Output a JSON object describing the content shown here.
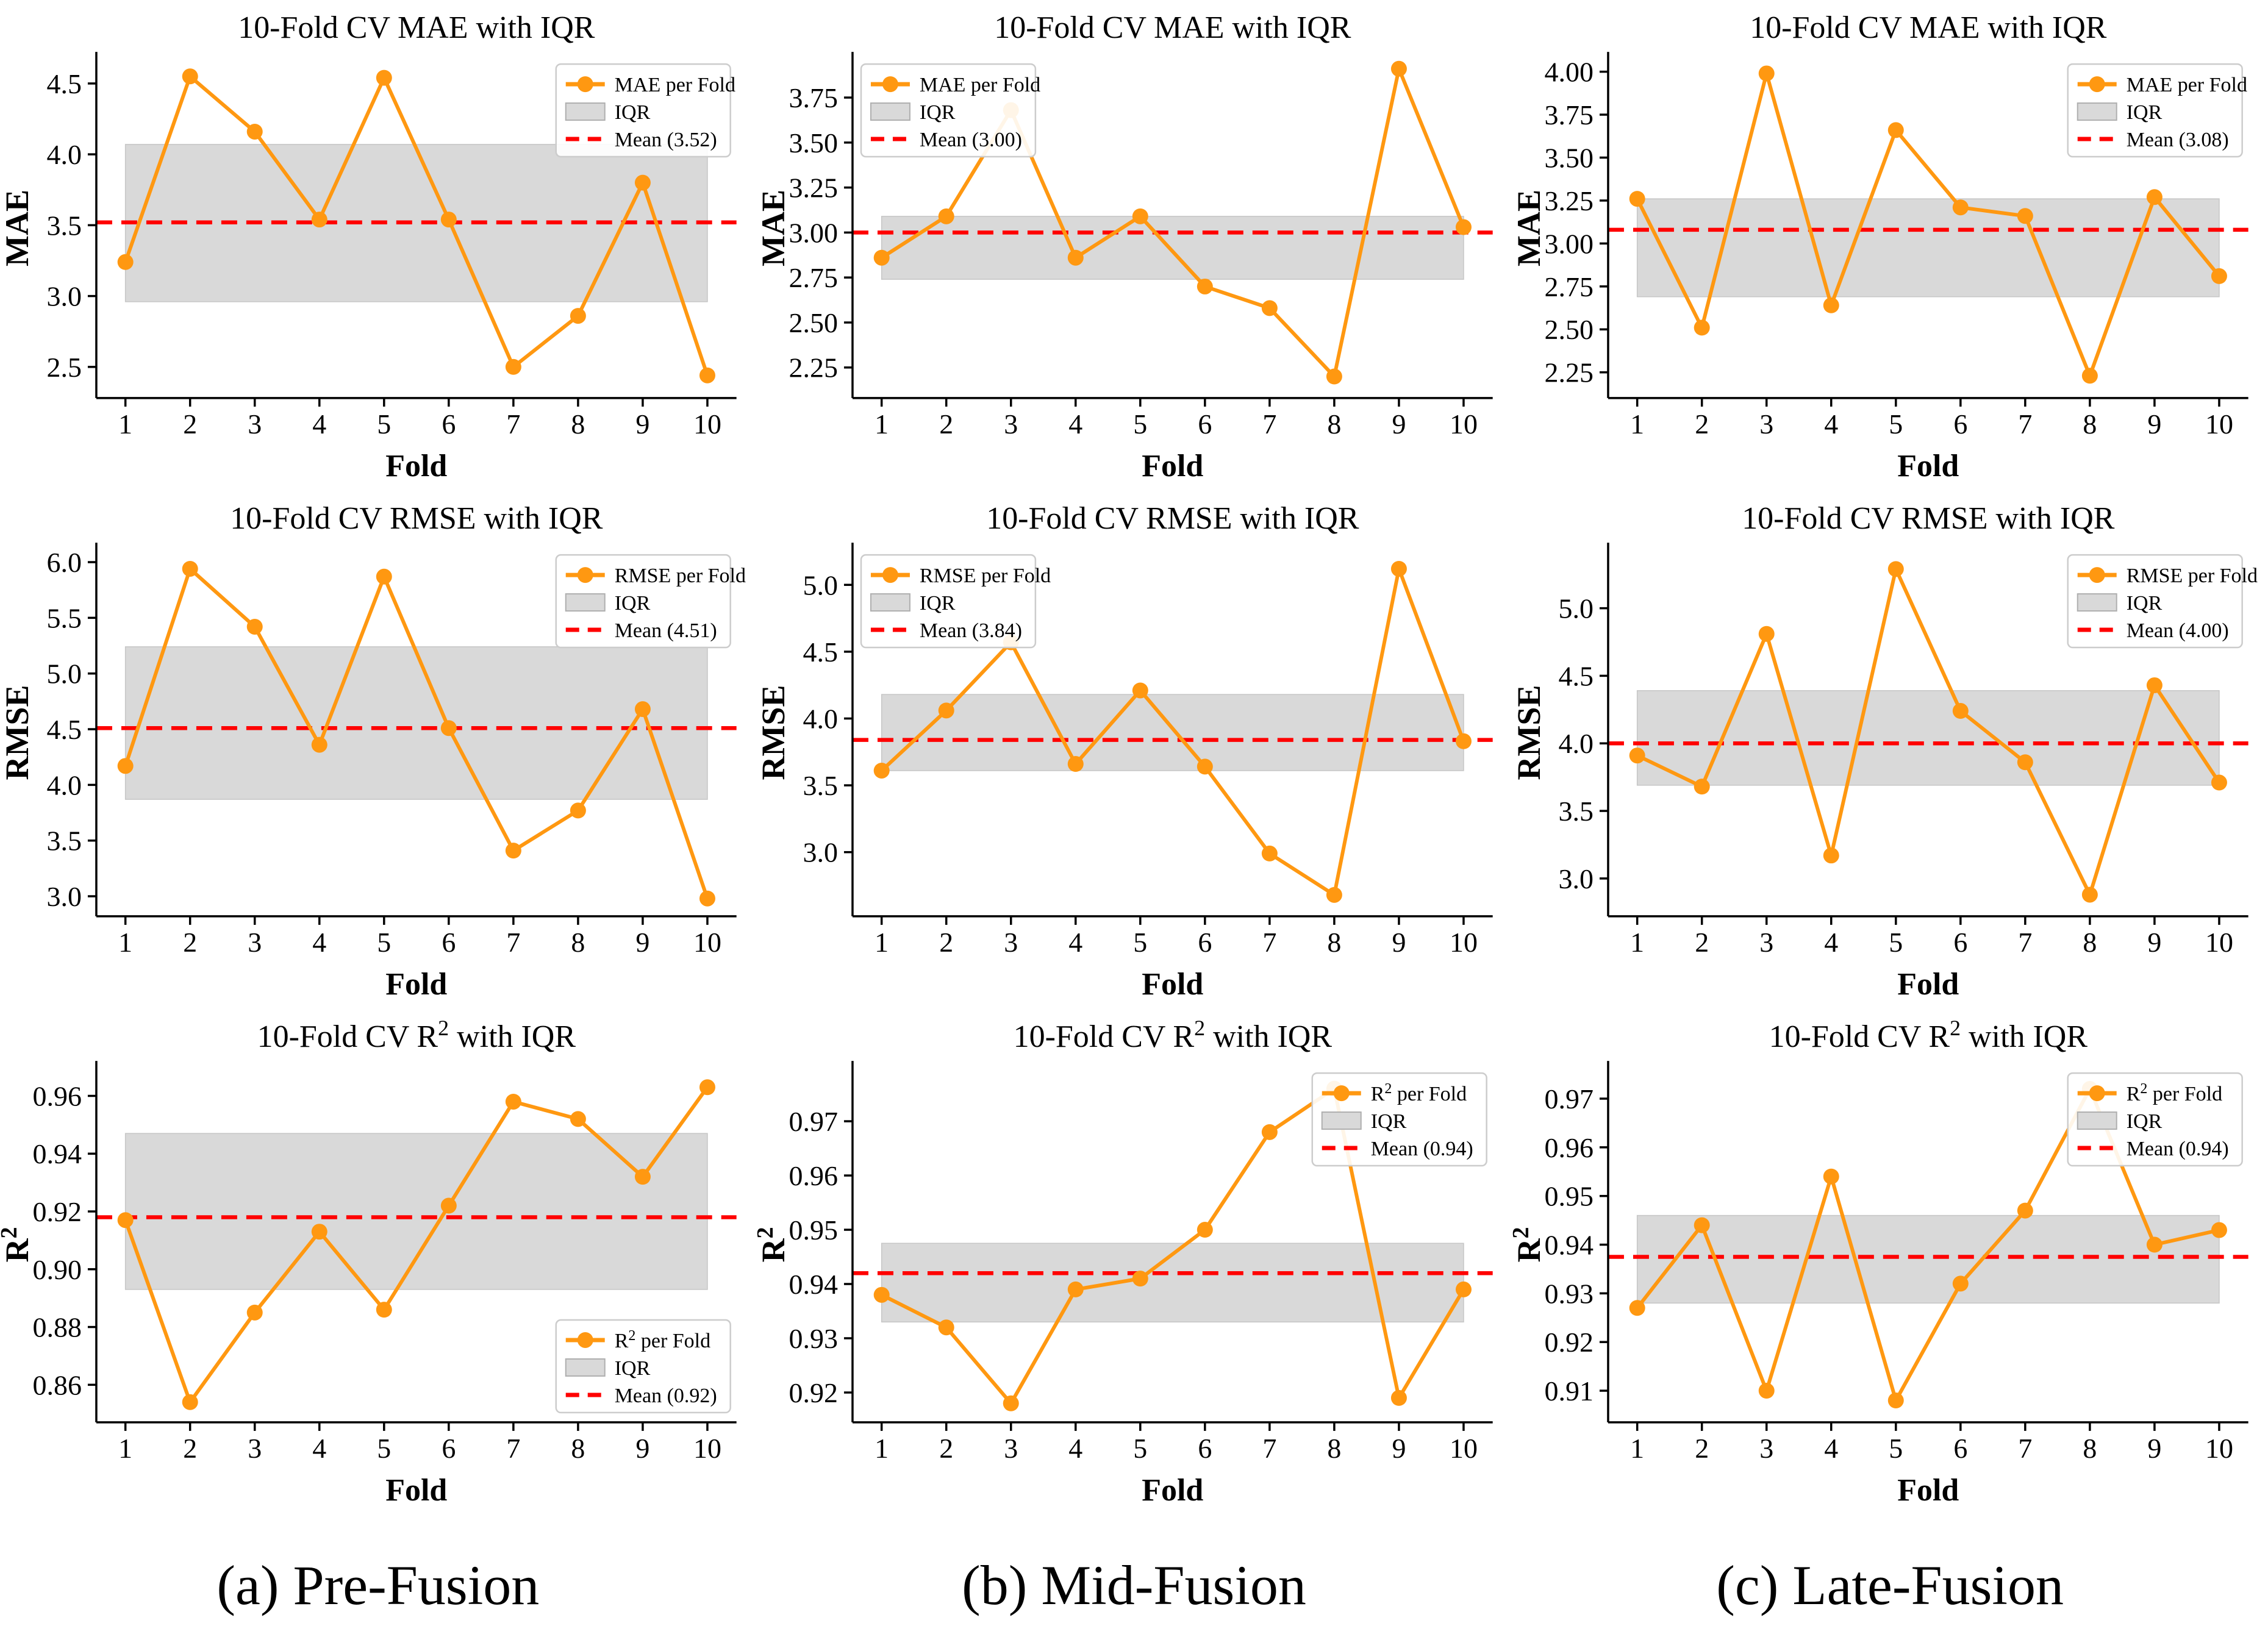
{
  "figure_title": "10-Fold Cross-Validation metrics (MAE, RMSE, R2) with IQR for three fusion strategies",
  "colors": {
    "series_line": "#FF9811",
    "marker": "#FF9811",
    "mean_line": "#FF0000",
    "iqr_fill": "#D9D9D9",
    "iqr_edge": "#C6C6C6",
    "axis": "#000000",
    "legend_border": "#CCCCCC",
    "background": "#FFFFFF"
  },
  "captions": [
    {
      "label": "(a) Pre-Fusion"
    },
    {
      "label": "(b) Mid-Fusion"
    },
    {
      "label": "(c) Late-Fusion"
    }
  ],
  "chart_data": [
    {
      "id": "pre-fusion-mae",
      "type": "line",
      "title": "10-Fold CV MAE with IQR",
      "xlabel": "Fold",
      "ylabel": "MAE",
      "series_label": "MAE per Fold",
      "iqr_label": "IQR",
      "mean_label": "Mean (3.52)",
      "x": [
        1,
        2,
        3,
        4,
        5,
        6,
        7,
        8,
        9,
        10
      ],
      "values": [
        3.24,
        4.55,
        4.16,
        3.54,
        4.54,
        3.54,
        2.5,
        2.86,
        3.8,
        2.44
      ],
      "iqr": [
        2.96,
        4.07
      ],
      "mean": 3.52,
      "yticks": [
        2.5,
        3.0,
        3.5,
        4.0,
        4.5
      ],
      "ytick_labels": [
        "2.5",
        "3.0",
        "3.5",
        "4.0",
        "4.5"
      ],
      "ylim": [
        2.28,
        4.68
      ],
      "xlim": [
        0.55,
        10.45
      ],
      "legend_pos": "top-right",
      "grid": false
    },
    {
      "id": "mid-fusion-mae",
      "type": "line",
      "title": "10-Fold CV MAE with IQR",
      "xlabel": "Fold",
      "ylabel": "MAE",
      "series_label": "MAE per Fold",
      "iqr_label": "IQR",
      "mean_label": "Mean (3.00)",
      "x": [
        1,
        2,
        3,
        4,
        5,
        6,
        7,
        8,
        9,
        10
      ],
      "values": [
        2.86,
        3.09,
        3.68,
        2.86,
        3.09,
        2.7,
        2.58,
        2.2,
        3.91,
        3.03
      ],
      "iqr": [
        2.74,
        3.09
      ],
      "mean": 3.0,
      "yticks": [
        2.25,
        2.5,
        2.75,
        3.0,
        3.25,
        3.5,
        3.75
      ],
      "ytick_labels": [
        "2.25",
        "2.50",
        "2.75",
        "3.00",
        "3.25",
        "3.50",
        "3.75"
      ],
      "ylim": [
        2.08,
        3.97
      ],
      "xlim": [
        0.55,
        10.45
      ],
      "legend_pos": "top-left",
      "grid": false
    },
    {
      "id": "late-fusion-mae",
      "type": "line",
      "title": "10-Fold CV MAE with IQR",
      "xlabel": "Fold",
      "ylabel": "MAE",
      "series_label": "MAE per Fold",
      "iqr_label": "IQR",
      "mean_label": "Mean (3.08)",
      "x": [
        1,
        2,
        3,
        4,
        5,
        6,
        7,
        8,
        9,
        10
      ],
      "values": [
        3.26,
        2.51,
        3.99,
        2.64,
        3.66,
        3.21,
        3.16,
        2.23,
        3.27,
        2.81
      ],
      "iqr": [
        2.69,
        3.26
      ],
      "mean": 3.08,
      "yticks": [
        2.25,
        2.5,
        2.75,
        3.0,
        3.25,
        3.5,
        3.75,
        4.0
      ],
      "ytick_labels": [
        "2.25",
        "2.50",
        "2.75",
        "3.00",
        "3.25",
        "3.50",
        "3.75",
        "4.00"
      ],
      "ylim": [
        2.1,
        4.08
      ],
      "xlim": [
        0.55,
        10.45
      ],
      "legend_pos": "top-right",
      "grid": false
    },
    {
      "id": "pre-fusion-rmse",
      "type": "line",
      "title": "10-Fold CV RMSE with IQR",
      "xlabel": "Fold",
      "ylabel": "RMSE",
      "series_label": "RMSE per Fold",
      "iqr_label": "IQR",
      "mean_label": "Mean (4.51)",
      "x": [
        1,
        2,
        3,
        4,
        5,
        6,
        7,
        8,
        9,
        10
      ],
      "values": [
        4.17,
        5.94,
        5.42,
        4.36,
        5.87,
        4.51,
        3.41,
        3.77,
        4.68,
        2.98
      ],
      "iqr": [
        3.87,
        5.24
      ],
      "mean": 4.51,
      "yticks": [
        3.0,
        3.5,
        4.0,
        4.5,
        5.0,
        5.5,
        6.0
      ],
      "ytick_labels": [
        "3.0",
        "3.5",
        "4.0",
        "4.5",
        "5.0",
        "5.5",
        "6.0"
      ],
      "ylim": [
        2.82,
        6.12
      ],
      "xlim": [
        0.55,
        10.45
      ],
      "legend_pos": "top-right",
      "grid": false
    },
    {
      "id": "mid-fusion-rmse",
      "type": "line",
      "title": "10-Fold CV RMSE with IQR",
      "xlabel": "Fold",
      "ylabel": "RMSE",
      "series_label": "RMSE per Fold",
      "iqr_label": "IQR",
      "mean_label": "Mean (3.84)",
      "x": [
        1,
        2,
        3,
        4,
        5,
        6,
        7,
        8,
        9,
        10
      ],
      "values": [
        3.61,
        4.06,
        4.57,
        3.66,
        4.21,
        3.64,
        2.99,
        2.68,
        5.12,
        3.83
      ],
      "iqr": [
        3.61,
        4.18
      ],
      "mean": 3.84,
      "yticks": [
        3.0,
        3.5,
        4.0,
        4.5,
        5.0
      ],
      "ytick_labels": [
        "3.0",
        "3.5",
        "4.0",
        "4.5",
        "5.0"
      ],
      "ylim": [
        2.52,
        5.27
      ],
      "xlim": [
        0.55,
        10.45
      ],
      "legend_pos": "top-left",
      "grid": false
    },
    {
      "id": "late-fusion-rmse",
      "type": "line",
      "title": "10-Fold CV RMSE with IQR",
      "xlabel": "Fold",
      "ylabel": "RMSE",
      "series_label": "RMSE per Fold",
      "iqr_label": "IQR",
      "mean_label": "Mean (4.00)",
      "x": [
        1,
        2,
        3,
        4,
        5,
        6,
        7,
        8,
        9,
        10
      ],
      "values": [
        3.91,
        3.68,
        4.81,
        3.17,
        5.29,
        4.24,
        3.86,
        2.88,
        4.43,
        3.71
      ],
      "iqr": [
        3.69,
        4.39
      ],
      "mean": 4.0,
      "yticks": [
        3.0,
        3.5,
        4.0,
        4.5,
        5.0
      ],
      "ytick_labels": [
        "3.0",
        "3.5",
        "4.0",
        "4.5",
        "5.0"
      ],
      "ylim": [
        2.72,
        5.44
      ],
      "xlim": [
        0.55,
        10.45
      ],
      "legend_pos": "top-right",
      "grid": false
    },
    {
      "id": "pre-fusion-r2",
      "type": "line",
      "title": "10-Fold CV R^2 with IQR",
      "xlabel": "Fold",
      "ylabel": "R^2",
      "series_label": "R^2 per Fold",
      "iqr_label": "IQR",
      "mean_label": "Mean (0.92)",
      "x": [
        1,
        2,
        3,
        4,
        5,
        6,
        7,
        8,
        9,
        10
      ],
      "values": [
        0.917,
        0.854,
        0.885,
        0.913,
        0.886,
        0.922,
        0.958,
        0.952,
        0.932,
        0.963
      ],
      "iqr": [
        0.893,
        0.947
      ],
      "mean": 0.918,
      "yticks": [
        0.86,
        0.88,
        0.9,
        0.92,
        0.94,
        0.96
      ],
      "ytick_labels": [
        "0.86",
        "0.88",
        "0.90",
        "0.92",
        "0.94",
        "0.96"
      ],
      "ylim": [
        0.847,
        0.97
      ],
      "xlim": [
        0.55,
        10.45
      ],
      "legend_pos": "bottom-right",
      "grid": false
    },
    {
      "id": "mid-fusion-r2",
      "type": "line",
      "title": "10-Fold CV R^2 with IQR",
      "xlabel": "Fold",
      "ylabel": "R^2",
      "series_label": "R^2 per Fold",
      "iqr_label": "IQR",
      "mean_label": "Mean (0.94)",
      "x": [
        1,
        2,
        3,
        4,
        5,
        6,
        7,
        8,
        9,
        10
      ],
      "values": [
        0.938,
        0.932,
        0.918,
        0.939,
        0.941,
        0.95,
        0.968,
        0.976,
        0.919,
        0.939
      ],
      "iqr": [
        0.933,
        0.9475
      ],
      "mean": 0.942,
      "yticks": [
        0.92,
        0.93,
        0.94,
        0.95,
        0.96,
        0.97
      ],
      "ytick_labels": [
        "0.92",
        "0.93",
        "0.94",
        "0.95",
        "0.96",
        "0.97"
      ],
      "ylim": [
        0.9145,
        0.98
      ],
      "xlim": [
        0.55,
        10.45
      ],
      "legend_pos": "top-right",
      "grid": false
    },
    {
      "id": "late-fusion-r2",
      "type": "line",
      "title": "10-Fold CV R^2 with IQR",
      "xlabel": "Fold",
      "ylabel": "R^2",
      "series_label": "R^2 per Fold",
      "iqr_label": "IQR",
      "mean_label": "Mean (0.94)",
      "x": [
        1,
        2,
        3,
        4,
        5,
        6,
        7,
        8,
        9,
        10
      ],
      "values": [
        0.927,
        0.944,
        0.91,
        0.954,
        0.908,
        0.932,
        0.947,
        0.972,
        0.94,
        0.943
      ],
      "iqr": [
        0.928,
        0.946
      ],
      "mean": 0.9375,
      "yticks": [
        0.91,
        0.92,
        0.93,
        0.94,
        0.95,
        0.96,
        0.97
      ],
      "ytick_labels": [
        "0.91",
        "0.92",
        "0.93",
        "0.94",
        "0.95",
        "0.96",
        "0.97"
      ],
      "ylim": [
        0.9035,
        0.9765
      ],
      "xlim": [
        0.55,
        10.45
      ],
      "legend_pos": "top-right",
      "grid": false
    }
  ]
}
